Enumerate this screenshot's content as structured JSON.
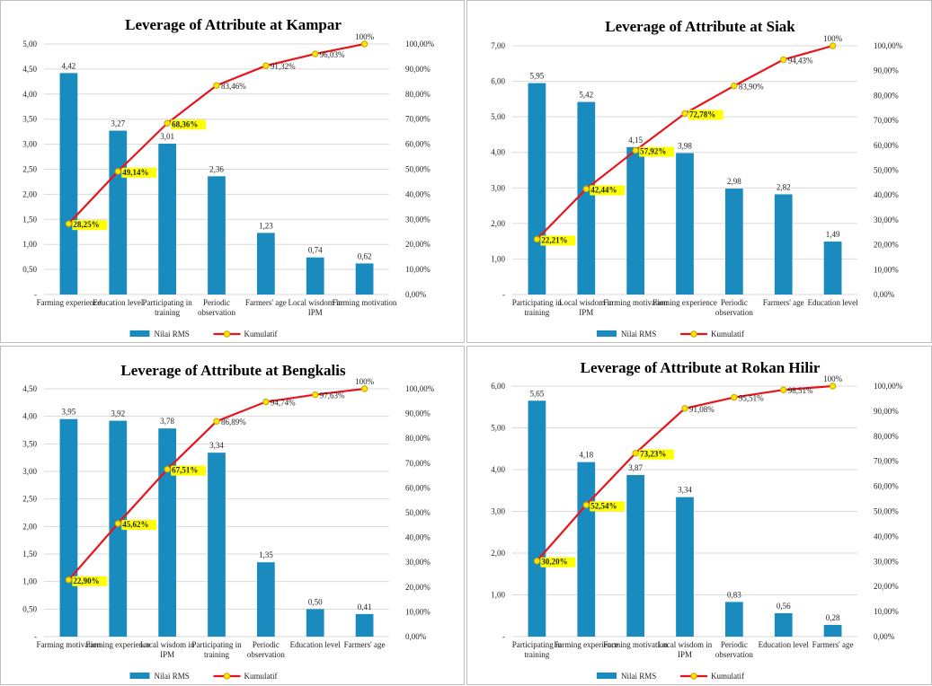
{
  "colors": {
    "bar": "#1a8bbf",
    "line": "#e8141c",
    "marker_fill": "#ffe600",
    "marker_edge": "#c9a300",
    "label_box": "#ffff00",
    "grid": "#d9d9d9"
  },
  "legend": {
    "bar_label": "Nilai RMS",
    "line_label": "Kumulatif"
  },
  "chart_data": [
    {
      "type": "bar",
      "title": "Leverage of Attribute at Kampar",
      "categories": [
        "Farming experience",
        "Education level",
        "Participating in training",
        "Periodic observation",
        "Farmers' age",
        "Local wisdom in IPM",
        "Farming motivation"
      ],
      "series": [
        {
          "name": "Nilai RMS",
          "type": "bar",
          "values": [
            4.42,
            3.27,
            3.01,
            2.36,
            1.23,
            0.74,
            0.62
          ],
          "labels": [
            "4,42",
            "3,27",
            "3,01",
            "2,36",
            "1,23",
            "0,74",
            "0,62"
          ]
        },
        {
          "name": "Kumulatif",
          "type": "line",
          "values": [
            28.25,
            49.14,
            68.36,
            83.46,
            91.32,
            96.03,
            100
          ],
          "labels": [
            "28,25%",
            "49,14%",
            "68,36%",
            "83,46%",
            "91,32%",
            "96,03%",
            "100%"
          ],
          "highlighted": [
            0,
            1,
            2
          ]
        }
      ],
      "ylim": [
        0,
        5
      ],
      "y_ticks": [
        "-",
        "0,50",
        "1,00",
        "1,50",
        "2,00",
        "2,50",
        "3,00",
        "3,50",
        "4,00",
        "4,50",
        "5,00"
      ],
      "y2lim": [
        0,
        100
      ],
      "y2_ticks": [
        "0,00%",
        "10,00%",
        "20,00%",
        "30,00%",
        "40,00%",
        "50,00%",
        "60,00%",
        "70,00%",
        "80,00%",
        "90,00%",
        "100,00%"
      ],
      "grid": true,
      "legend_position": "bottom"
    },
    {
      "type": "bar",
      "title": "Leverage of Attribute at Siak",
      "categories": [
        "Participating in training",
        "Local wisdom in IPM",
        "Farming motivation",
        "Farming experience",
        "Periodic observation",
        "Farmers' age",
        "Education level"
      ],
      "series": [
        {
          "name": "Nilai RMS",
          "type": "bar",
          "values": [
            5.95,
            5.42,
            4.15,
            3.98,
            2.98,
            2.82,
            1.49
          ],
          "labels": [
            "5,95",
            "5,42",
            "4,15",
            "3,98",
            "2,98",
            "2,82",
            "1,49"
          ]
        },
        {
          "name": "Kumulatif",
          "type": "line",
          "values": [
            22.21,
            42.44,
            57.92,
            72.78,
            83.9,
            94.43,
            100
          ],
          "labels": [
            "22,21%",
            "42,44%",
            "57,92%",
            "72,78%",
            "83,90%",
            "94,43%",
            "100%"
          ],
          "highlighted": [
            0,
            1,
            2,
            3
          ]
        }
      ],
      "ylim": [
        0,
        7
      ],
      "y_ticks": [
        "-",
        "1,00",
        "2,00",
        "3,00",
        "4,00",
        "5,00",
        "6,00",
        "7,00"
      ],
      "y2lim": [
        0,
        100
      ],
      "y2_ticks": [
        "0,00%",
        "10,00%",
        "20,00%",
        "30,00%",
        "40,00%",
        "50,00%",
        "60,00%",
        "70,00%",
        "80,00%",
        "90,00%",
        "100,00%"
      ],
      "grid": true,
      "legend_position": "bottom"
    },
    {
      "type": "bar",
      "title": "Leverage of Attribute at Bengkalis",
      "categories": [
        "Farming motivation",
        "Farming experience",
        "Local wisdom in IPM",
        "Participating in training",
        "Periodic observation",
        "Education level",
        "Farmers' age"
      ],
      "series": [
        {
          "name": "Nilai RMS",
          "type": "bar",
          "values": [
            3.95,
            3.92,
            3.78,
            3.34,
            1.35,
            0.5,
            0.41
          ],
          "labels": [
            "3,95",
            "3,92",
            "3,78",
            "3,34",
            "1,35",
            "0,50",
            "0,41"
          ]
        },
        {
          "name": "Kumulatif",
          "type": "line",
          "values": [
            22.9,
            45.62,
            67.51,
            86.89,
            94.74,
            97.63,
            100
          ],
          "labels": [
            "22,90%",
            "45,62%",
            "67,51%",
            "86,89%",
            "94,74%",
            "97,63%",
            "100%"
          ],
          "highlighted": [
            0,
            1,
            2
          ]
        }
      ],
      "ylim": [
        0,
        4.5
      ],
      "y_ticks": [
        "-",
        "0,50",
        "1,00",
        "1,50",
        "2,00",
        "2,50",
        "3,00",
        "3,50",
        "4,00",
        "4,50"
      ],
      "y2lim": [
        0,
        100
      ],
      "y2_ticks": [
        "0,00%",
        "10,00%",
        "20,00%",
        "30,00%",
        "40,00%",
        "50,00%",
        "60,00%",
        "70,00%",
        "80,00%",
        "90,00%",
        "100,00%"
      ],
      "grid": true,
      "legend_position": "bottom"
    },
    {
      "type": "bar",
      "title": "Leverage of Attribute at Rokan Hilir",
      "categories": [
        "Participating in training",
        "Farming experience",
        "Farming motivation",
        "Local wisdom in IPM",
        "Periodic observation",
        "Education level",
        "Farmers' age"
      ],
      "series": [
        {
          "name": "Nilai RMS",
          "type": "bar",
          "values": [
            5.65,
            4.18,
            3.87,
            3.34,
            0.83,
            0.56,
            0.28
          ],
          "labels": [
            "5,65",
            "4,18",
            "3,87",
            "3,34",
            "0,83",
            "0,56",
            "0,28"
          ]
        },
        {
          "name": "Kumulatif",
          "type": "line",
          "values": [
            30.2,
            52.54,
            73.23,
            91.08,
            95.51,
            98.51,
            100
          ],
          "labels": [
            "30,20%",
            "52,54%",
            "73,23%",
            "91,08%",
            "95,51%",
            "98,51%",
            "100%"
          ],
          "highlighted": [
            0,
            1,
            2
          ]
        }
      ],
      "ylim": [
        0,
        6
      ],
      "y_ticks": [
        "-",
        "1,00",
        "2,00",
        "3,00",
        "4,00",
        "5,00",
        "6,00"
      ],
      "y2lim": [
        0,
        100
      ],
      "y2_ticks": [
        "0,00%",
        "10,00%",
        "20,00%",
        "30,00%",
        "40,00%",
        "50,00%",
        "60,00%",
        "70,00%",
        "80,00%",
        "90,00%",
        "100,00%"
      ],
      "grid": true,
      "legend_position": "bottom"
    }
  ]
}
